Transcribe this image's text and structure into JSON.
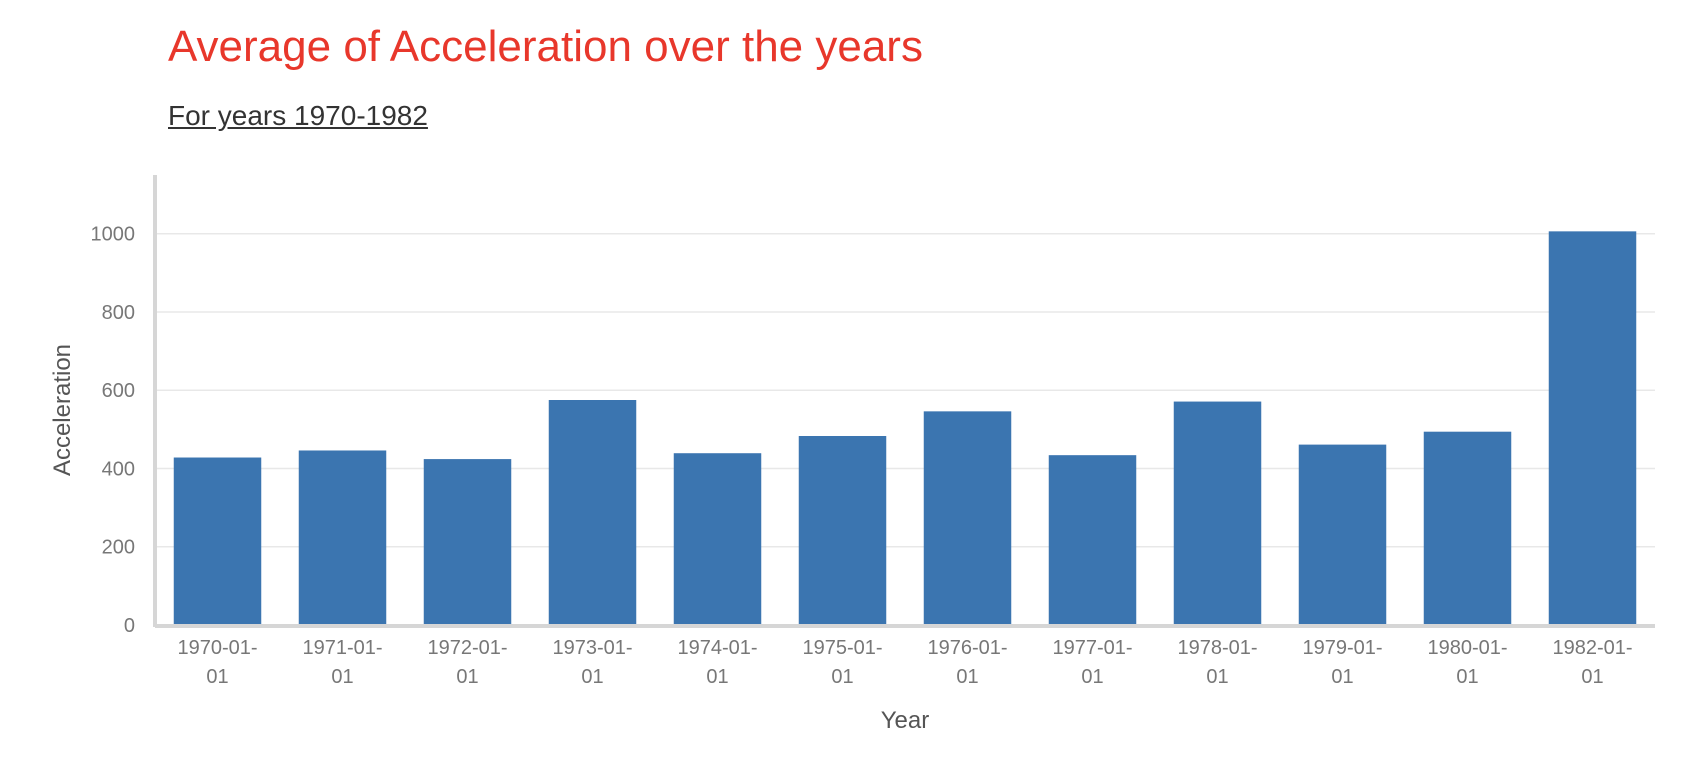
{
  "chart_data": {
    "type": "bar",
    "title": "Average of Acceleration over the years",
    "subtitle": "For years 1970-1982",
    "xlabel": "Year",
    "ylabel": "Acceleration",
    "categories": [
      "1970-01-01",
      "1971-01-01",
      "1972-01-01",
      "1973-01-01",
      "1974-01-01",
      "1975-01-01",
      "1976-01-01",
      "1977-01-01",
      "1978-01-01",
      "1979-01-01",
      "1980-01-01",
      "1982-01-01"
    ],
    "values": [
      428,
      446,
      424,
      575,
      439,
      483,
      546,
      434,
      571,
      461,
      494,
      1006
    ],
    "ylim": [
      0,
      1150
    ],
    "yticks": [
      0,
      200,
      400,
      600,
      800,
      1000
    ],
    "grid": true,
    "legend": "none",
    "bar_color": "#3b75b0",
    "title_color": "#e8372b"
  }
}
